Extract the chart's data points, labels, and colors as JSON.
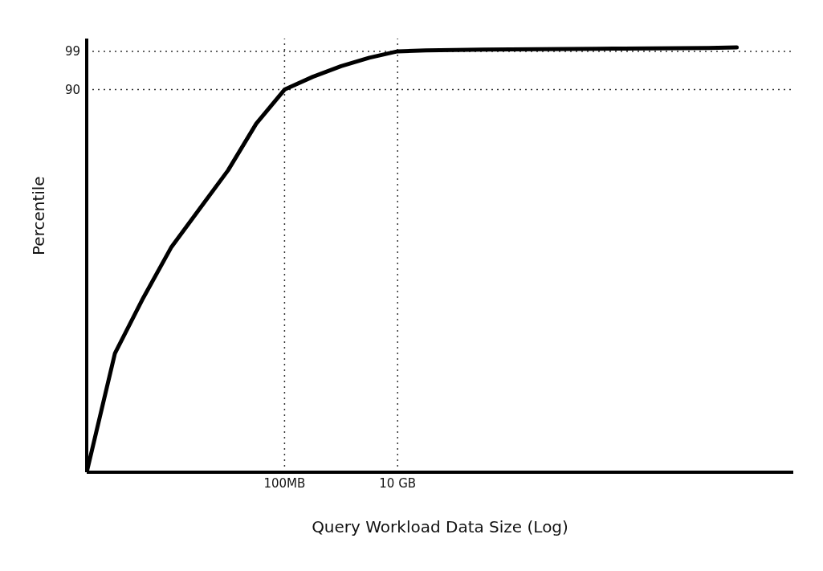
{
  "chart_data": {
    "type": "line",
    "xlabel": "Query Workload Data Size (Log)",
    "ylabel": "Percentile",
    "categories": [
      null,
      null,
      null,
      null,
      null,
      null,
      null,
      "100MB",
      null,
      null,
      null,
      "10 GB",
      null,
      null,
      null,
      null,
      null,
      null,
      null,
      null,
      null,
      null,
      null,
      null,
      null,
      null
    ],
    "series": [
      {
        "color": "#000000",
        "values": [
          0,
          28,
          41,
          53,
          62,
          71,
          82,
          90,
          93,
          95.5,
          97.5,
          99,
          99.2,
          99.3,
          99.4,
          99.45,
          99.5,
          99.55,
          99.6,
          99.65,
          99.7,
          99.75,
          99.8,
          99.9,
          null,
          null
        ]
      }
    ],
    "ylim": [
      0,
      102
    ],
    "yticks": [
      90,
      99
    ],
    "ref_lines": [
      {
        "axis": "x",
        "value": "100MB",
        "line_style": "dotted"
      },
      {
        "axis": "x",
        "value": "10 GB",
        "line_style": "dotted"
      },
      {
        "axis": "y",
        "value": 90,
        "line_style": "dotted"
      },
      {
        "axis": "y",
        "value": 99,
        "line_style": "dotted"
      }
    ],
    "grid": false,
    "legend": false,
    "marker": "none",
    "line_style": "solid"
  }
}
